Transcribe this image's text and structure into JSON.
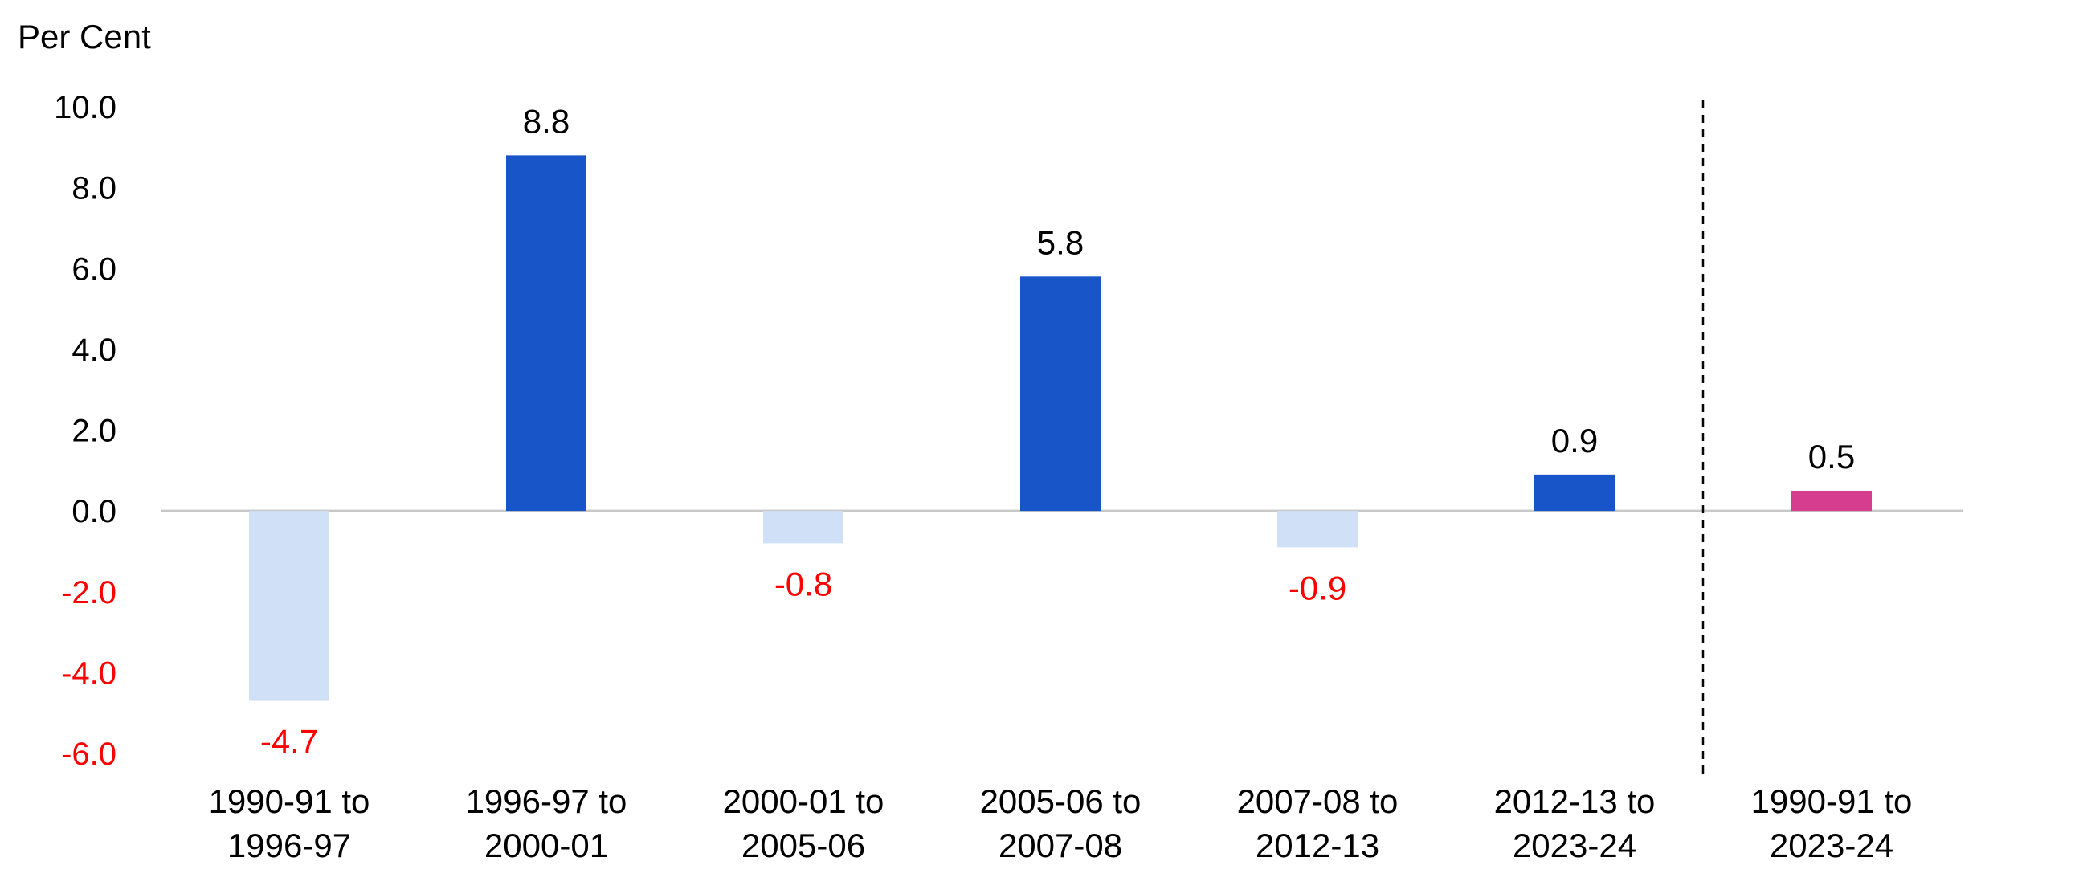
{
  "chart_data": {
    "type": "bar",
    "ylabel": "Per Cent",
    "ylim": [
      -6.0,
      10.0
    ],
    "yticks": [
      "10.0",
      "8.0",
      "6.0",
      "4.0",
      "2.0",
      "0.0",
      "-2.0",
      "-4.0",
      "-6.0"
    ],
    "categories": [
      [
        "1990-91 to",
        "1996-97"
      ],
      [
        "1996-97 to",
        "2000-01"
      ],
      [
        "2000-01 to",
        "2005-06"
      ],
      [
        "2005-06 to",
        "2007-08"
      ],
      [
        "2007-08 to",
        "2012-13"
      ],
      [
        "2012-13 to",
        "2023-24"
      ],
      [
        "1990-91 to",
        "2023-24"
      ]
    ],
    "values": [
      -4.7,
      8.8,
      -0.8,
      5.8,
      -0.9,
      0.9,
      0.5
    ],
    "value_labels": [
      "-4.7",
      "8.8",
      "-0.8",
      "5.8",
      "-0.9",
      "0.9",
      "0.5"
    ],
    "divider_after_index": 5,
    "colors": {
      "positive": "#1755C9",
      "negative": "#CFE0F7",
      "overall": "#D63D8E",
      "negative_text": "#FF0000",
      "text": "#000000",
      "zero_line": "#C8C8C8"
    }
  }
}
